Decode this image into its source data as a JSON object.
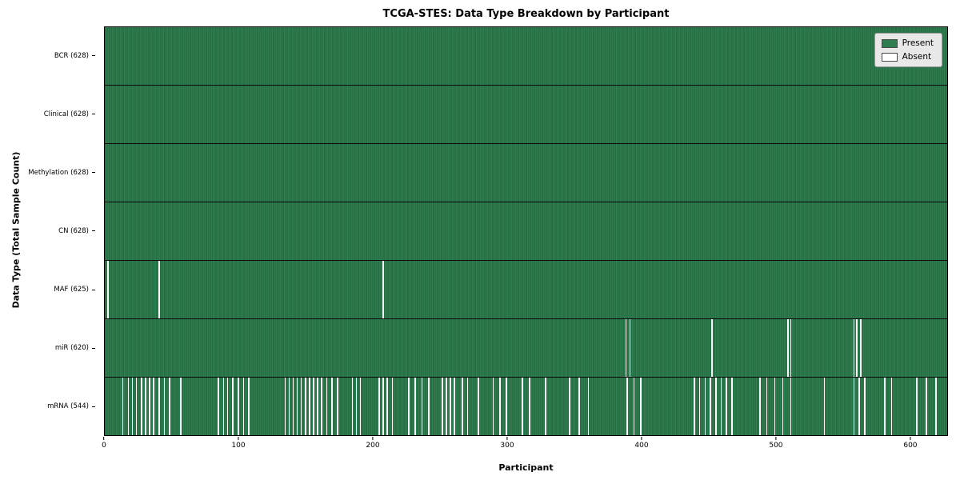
{
  "title": "TCGA-STES: Data Type Breakdown by Participant",
  "colors": {
    "present": "#2e7d4e",
    "absent": "#fafafa",
    "legend_bg": "#e8e8e8",
    "row_divider": "#0a0a0a"
  },
  "legend": {
    "present_label": "Present",
    "absent_label": "Absent"
  },
  "chart_data": {
    "type": "heatmap",
    "title": "TCGA-STES: Data Type Breakdown by Participant",
    "xlabel": "Participant",
    "ylabel": "Data Type (Total Sample Count)",
    "x_ticks": [
      0,
      100,
      200,
      300,
      400,
      500,
      600
    ],
    "x_range": [
      0,
      628
    ],
    "n_participants": 628,
    "grid": false,
    "legend_entries": [
      "Present",
      "Absent"
    ],
    "legend_position": "upper right",
    "rows": [
      {
        "label": "BCR (628)",
        "data_type": "BCR",
        "present_count": 628,
        "absent_count": 0,
        "absent_participants": []
      },
      {
        "label": "Clinical (628)",
        "data_type": "Clinical",
        "present_count": 628,
        "absent_count": 0,
        "absent_participants": []
      },
      {
        "label": "Methylation (628)",
        "data_type": "Methylation",
        "present_count": 628,
        "absent_count": 0,
        "absent_participants": []
      },
      {
        "label": "CN (628)",
        "data_type": "CN",
        "present_count": 628,
        "absent_count": 0,
        "absent_participants": []
      },
      {
        "label": "MAF (625)",
        "data_type": "MAF",
        "present_count": 625,
        "absent_count": 3,
        "absent_participants": [
          2,
          40,
          207
        ]
      },
      {
        "label": "miR (620)",
        "data_type": "miR",
        "present_count": 620,
        "absent_count": 8,
        "absent_participants": [
          388,
          391,
          452,
          509,
          511,
          558,
          560,
          563
        ]
      },
      {
        "label": "mRNA (544)",
        "data_type": "mRNA",
        "present_count": 544,
        "absent_count": 84,
        "absent_participants": [
          13,
          17,
          20,
          23,
          27,
          30,
          33,
          36,
          40,
          44,
          48,
          56,
          84,
          88,
          91,
          95,
          99,
          103,
          107,
          134,
          137,
          140,
          143,
          146,
          149,
          152,
          155,
          158,
          161,
          165,
          169,
          173,
          184,
          187,
          190,
          204,
          207,
          210,
          214,
          226,
          231,
          236,
          241,
          251,
          254,
          257,
          260,
          266,
          270,
          278,
          289,
          294,
          299,
          311,
          316,
          328,
          346,
          353,
          360,
          389,
          394,
          399,
          439,
          443,
          447,
          451,
          455,
          459,
          463,
          467,
          488,
          493,
          499,
          505,
          511,
          536,
          558,
          562,
          566,
          581,
          586,
          605,
          612,
          619
        ]
      }
    ]
  }
}
